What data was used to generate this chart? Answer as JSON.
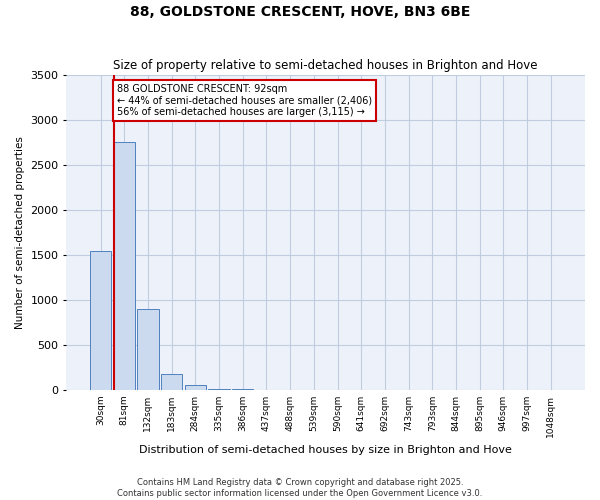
{
  "title": "88, GOLDSTONE CRESCENT, HOVE, BN3 6BE",
  "subtitle": "Size of property relative to semi-detached houses in Brighton and Hove",
  "xlabel": "Distribution of semi-detached houses by size in Brighton and Hove",
  "ylabel": "Number of semi-detached properties",
  "bin_labels": [
    "30sqm",
    "81sqm",
    "132sqm",
    "183sqm",
    "284sqm",
    "335sqm",
    "386sqm",
    "437sqm",
    "488sqm",
    "539sqm",
    "590sqm",
    "641sqm",
    "692sqm",
    "743sqm",
    "793sqm",
    "844sqm",
    "895sqm",
    "946sqm",
    "997sqm",
    "1048sqm"
  ],
  "bar_values": [
    1540,
    2750,
    900,
    175,
    55,
    10,
    5,
    2,
    1,
    1,
    0,
    0,
    0,
    0,
    0,
    0,
    0,
    0,
    0,
    0
  ],
  "bar_color": "#ccdaf0",
  "bar_edge_color": "#5080c0",
  "property_sqm": 92,
  "property_label": "88 GOLDSTONE CRESCENT: 92sqm",
  "pct_smaller": 44,
  "n_smaller": 2406,
  "pct_larger": 56,
  "n_larger": 3115,
  "annotation_color": "#cc0000",
  "ylim": [
    0,
    3500
  ],
  "yticks": [
    0,
    500,
    1000,
    1500,
    2000,
    2500,
    3000,
    3500
  ],
  "grid_color": "#c0cce0",
  "background_color": "#edf2fa",
  "footer_line1": "Contains HM Land Registry data © Crown copyright and database right 2025.",
  "footer_line2": "Contains public sector information licensed under the Open Government Licence v3.0."
}
